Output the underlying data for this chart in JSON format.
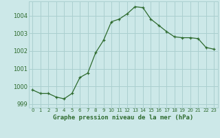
{
  "x": [
    0,
    1,
    2,
    3,
    4,
    5,
    6,
    7,
    8,
    9,
    10,
    11,
    12,
    13,
    14,
    15,
    16,
    17,
    18,
    19,
    20,
    21,
    22,
    23
  ],
  "y": [
    999.8,
    999.6,
    999.6,
    999.4,
    999.3,
    999.6,
    1000.5,
    1000.75,
    1001.9,
    1002.6,
    1003.65,
    1003.8,
    1004.1,
    1004.5,
    1004.45,
    1003.8,
    1003.45,
    1003.1,
    1002.8,
    1002.75,
    1002.75,
    1002.7,
    1002.2,
    1002.1
  ],
  "line_color": "#2d6a2d",
  "marker": "+",
  "bg_color": "#cce8e8",
  "grid_color": "#aacfcf",
  "xlabel": "Graphe pression niveau de la mer (hPa)",
  "xlabel_color": "#2d6a2d",
  "tick_color": "#2d6a2d",
  "ylim": [
    998.8,
    1004.8
  ],
  "yticks": [
    999,
    1000,
    1001,
    1002,
    1003,
    1004
  ],
  "xticks": [
    0,
    1,
    2,
    3,
    4,
    5,
    6,
    7,
    8,
    9,
    10,
    11,
    12,
    13,
    14,
    15,
    16,
    17,
    18,
    19,
    20,
    21,
    22,
    23
  ],
  "xtick_labels": [
    "0",
    "1",
    "2",
    "3",
    "4",
    "5",
    "6",
    "7",
    "8",
    "9",
    "10",
    "11",
    "12",
    "13",
    "14",
    "15",
    "16",
    "17",
    "18",
    "19",
    "20",
    "21",
    "22",
    "23"
  ]
}
